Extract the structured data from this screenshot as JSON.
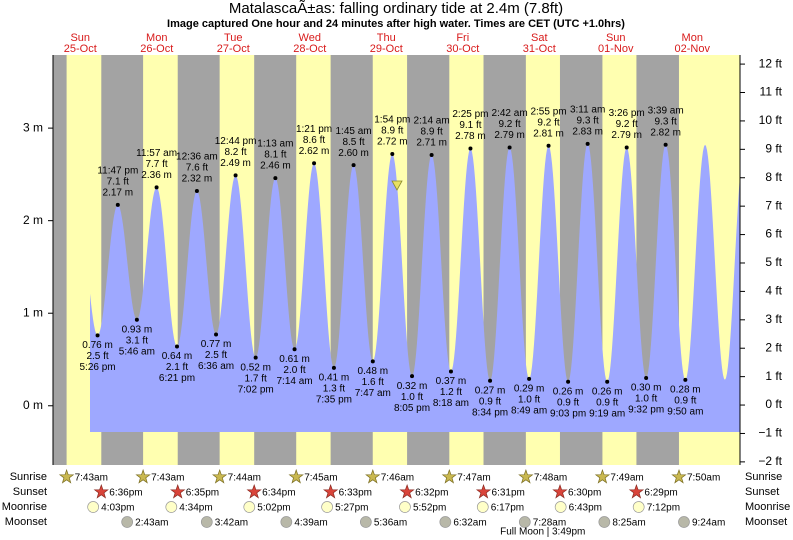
{
  "chart_data": {
    "type": "tide",
    "title": "MatalascaÃ±as: falling  ordinary tide at 2.4m (7.8ft)",
    "subtitle": "Image captured One hour and 24 minutes after high water. Times are CET (UTC +1.0hrs)",
    "days": {
      "names": [
        "Sun",
        "Mon",
        "Tue",
        "Wed",
        "Thu",
        "Fri",
        "Sat",
        "Sun",
        "Mon"
      ],
      "dates": [
        "25-Oct",
        "26-Oct",
        "27-Oct",
        "28-Oct",
        "29-Oct",
        "30-Oct",
        "31-Oct",
        "01-Nov",
        "02-Nov"
      ]
    },
    "extremes": {
      "times": [
        "5:26 pm",
        "11:47 pm",
        "5:46 am",
        "11:57 am",
        "6:21 pm",
        "12:36 am",
        "6:36 am",
        "12:44 pm",
        "7:02 pm",
        "1:13 am",
        "7:14 am",
        "1:21 pm",
        "7:35 pm",
        "1:45 am",
        "7:47 am",
        "1:54 pm",
        "8:05 pm",
        "2:14 am",
        "8:18 am",
        "2:25 pm",
        "8:34 pm",
        "2:42 am",
        "8:49 am",
        "2:55 pm",
        "9:03 pm",
        "3:11 am",
        "9:19 am",
        "3:26 pm",
        "9:32 pm",
        "3:39 am",
        "9:50 am"
      ],
      "values": [
        0.76,
        2.17,
        0.93,
        2.36,
        0.64,
        2.32,
        0.77,
        2.49,
        0.52,
        2.46,
        0.61,
        2.62,
        0.41,
        2.6,
        0.48,
        2.72,
        0.32,
        2.71,
        0.37,
        2.78,
        0.27,
        2.79,
        0.29,
        2.81,
        0.26,
        2.83,
        0.26,
        2.79,
        0.3,
        2.82,
        0.28
      ],
      "value_labels": [
        "0.76 m",
        "2.17 m",
        "0.93 m",
        "2.36 m",
        "0.64 m",
        "2.32 m",
        "0.77 m",
        "2.49 m",
        "0.52 m",
        "2.46 m",
        "0.61 m",
        "2.62 m",
        "0.41 m",
        "2.60 m",
        "0.48 m",
        "2.72 m",
        "0.32 m",
        "2.71 m",
        "0.37 m",
        "2.78 m",
        "0.27 m",
        "2.79 m",
        "0.29 m",
        "2.81 m",
        "0.26 m",
        "2.83 m",
        "0.26 m",
        "2.79 m",
        "0.30 m",
        "2.82 m",
        "0.28 m"
      ],
      "feet_labels": [
        "2.5 ft",
        "7.1 ft",
        "3.1 ft",
        "7.7 ft",
        "2.1 ft",
        "7.6 ft",
        "2.5 ft",
        "8.2 ft",
        "1.7 ft",
        "8.1 ft",
        "2.0 ft",
        "8.6 ft",
        "1.3 ft",
        "8.5 ft",
        "1.6 ft",
        "8.9 ft",
        "1.0 ft",
        "8.9 ft",
        "1.2 ft",
        "9.1 ft",
        "0.9 ft",
        "9.2 ft",
        "1.0 ft",
        "9.2 ft",
        "0.9 ft",
        "9.3 ft",
        "0.9 ft",
        "9.2 ft",
        "1.0 ft",
        "9.3 ft",
        "0.9 ft"
      ]
    },
    "color": "#9ea8ff",
    "ylim": [
      -0.64,
      3.79
    ],
    "yticks": [
      {
        "value": 0,
        "label": "0 m"
      },
      {
        "value": 1,
        "label": "1 m"
      },
      {
        "value": 2,
        "label": "2 m"
      },
      {
        "value": 3,
        "label": "3 m"
      }
    ],
    "y2lim": [
      -2.11,
      12.32
    ],
    "y2ticks": [
      {
        "value": -2,
        "label": "−2 ft"
      },
      {
        "value": -1,
        "label": "−1 ft"
      },
      {
        "value": 0,
        "label": "0 ft"
      },
      {
        "value": 1,
        "label": "1 ft"
      },
      {
        "value": 2,
        "label": "2 ft"
      },
      {
        "value": 3,
        "label": "3 ft"
      },
      {
        "value": 4,
        "label": "4 ft"
      },
      {
        "value": 5,
        "label": "5 ft"
      },
      {
        "value": 6,
        "label": "6 ft"
      },
      {
        "value": 7,
        "label": "7 ft"
      },
      {
        "value": 8,
        "label": "8 ft"
      },
      {
        "value": 9,
        "label": "9 ft"
      },
      {
        "value": 10,
        "label": "10 ft"
      },
      {
        "value": 11,
        "label": "11 ft"
      },
      {
        "value": 12,
        "label": "12 ft"
      }
    ],
    "almanac": [
      {
        "label": "Sunrise",
        "times": [
          "7:43am",
          "7:43am",
          "7:44am",
          "7:45am",
          "7:46am",
          "7:47am",
          "7:48am",
          "7:49am",
          "7:50am"
        ]
      },
      {
        "label": "Sunset",
        "times": [
          "6:36pm",
          "6:35pm",
          "6:34pm",
          "6:33pm",
          "6:32pm",
          "6:31pm",
          "6:30pm",
          "6:29pm",
          null
        ]
      },
      {
        "label": "Moonrise",
        "times": [
          "4:03pm",
          "4:34pm",
          "5:02pm",
          "5:27pm",
          "5:52pm",
          "6:17pm",
          "6:43pm",
          "7:12pm",
          null
        ]
      },
      {
        "label": "Moonset",
        "times": [
          null,
          "2:43am",
          "3:42am",
          "4:39am",
          "5:36am",
          "6:32am",
          "7:28am",
          "8:25am",
          "9:24am"
        ]
      }
    ],
    "full_moon": {
      "label": "Full Moon",
      "time": "3:49pm"
    }
  }
}
